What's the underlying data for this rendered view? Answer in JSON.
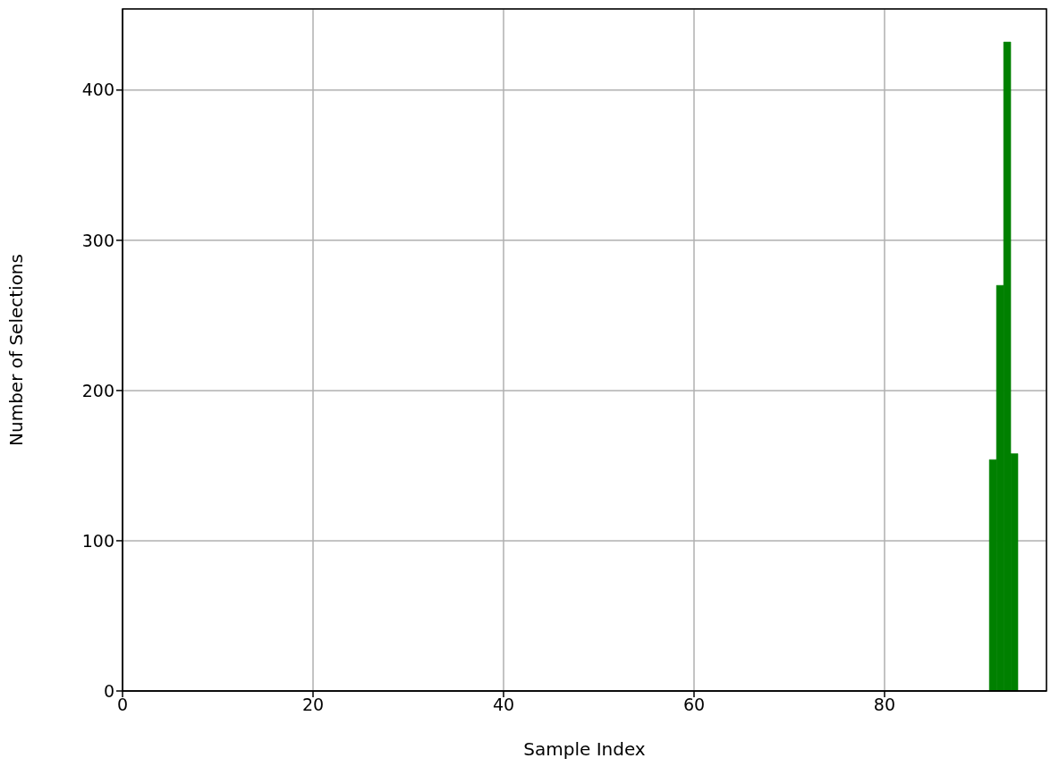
{
  "chart_data": {
    "type": "histogram",
    "xlabel": "Sample Index",
    "ylabel": "Number of Selections",
    "bins": [
      91,
      91.75,
      92.5,
      93.25,
      94
    ],
    "values": [
      154,
      270,
      432,
      158
    ],
    "color": "#008000",
    "xlim": [
      0,
      97
    ],
    "xticks": [
      0,
      20,
      40,
      60,
      80
    ],
    "ylim": [
      0,
      454
    ],
    "yticks": [
      0,
      100,
      200,
      300,
      400
    ],
    "grid": true
  }
}
